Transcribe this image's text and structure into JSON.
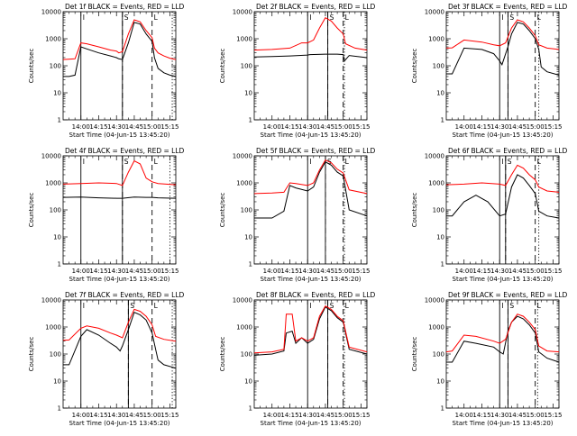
{
  "figure": {
    "start_time_label": "Start Time (04-Jun-15 13:45:20)",
    "ylabel": "Counts/sec",
    "x_ticks": [
      "14:00",
      "14:15",
      "14:30",
      "14:45",
      "15:00",
      "15:15"
    ],
    "y_ticks": [
      "1",
      "10",
      "100",
      "1000",
      "10000"
    ],
    "marker_labels": [
      "I",
      "S",
      "L"
    ],
    "series_colors": {
      "events": "#000000",
      "lld": "#ff0000"
    }
  },
  "chart_data": [
    {
      "type": "line",
      "title": "Det 1f BLACK = Events, RED = LLD",
      "xlabel": "Start Time (04-Jun-15 13:45:20)",
      "ylabel": "Counts/sec",
      "ylim": [
        1,
        10000
      ],
      "log_y": true,
      "xmin": "13:45",
      "xmax": "15:20",
      "markers": {
        "I": "14:00",
        "S": "14:35",
        "L": "15:00",
        "solid": [
          "14:00",
          "14:35"
        ],
        "dashed": [
          "14:35",
          "15:00"
        ],
        "dotted": [
          "15:17"
        ]
      },
      "series": [
        {
          "name": "BLACK = Events",
          "color": "#000000",
          "x": [
            "13:45",
            "13:50",
            "13:55",
            "14:00",
            "14:05",
            "14:15",
            "14:25",
            "14:30",
            "14:32",
            "14:35",
            "14:40",
            "14:45",
            "14:50",
            "14:55",
            "15:00",
            "15:02",
            "15:05",
            "15:10",
            "15:15",
            "15:20"
          ],
          "values": [
            40,
            40,
            45,
            500,
            420,
            300,
            230,
            200,
            180,
            170,
            700,
            4000,
            3500,
            1500,
            800,
            200,
            80,
            55,
            45,
            40
          ]
        },
        {
          "name": "RED = LLD",
          "color": "#ff0000",
          "x": [
            "13:45",
            "13:55",
            "14:00",
            "14:05",
            "14:15",
            "14:25",
            "14:30",
            "14:32",
            "14:35",
            "14:40",
            "14:45",
            "14:50",
            "14:55",
            "15:00",
            "15:02",
            "15:05",
            "15:10",
            "15:15",
            "15:20"
          ],
          "values": [
            170,
            180,
            700,
            650,
            500,
            380,
            350,
            300,
            330,
            1500,
            5000,
            4200,
            2000,
            1100,
            450,
            300,
            230,
            190,
            170
          ]
        }
      ]
    },
    {
      "type": "line",
      "title": "Det 2f BLACK = Events, RED = LLD",
      "xlabel": "Start Time (04-Jun-15 13:45:20)",
      "ylabel": "Counts/sec",
      "ylim": [
        1,
        10000
      ],
      "log_y": true,
      "xmin": "13:45",
      "xmax": "15:20",
      "markers": {
        "I": "14:30",
        "S": "14:47",
        "L": "15:00",
        "solid": [
          "14:30",
          "14:47"
        ],
        "dashed": [
          "14:47",
          "15:00"
        ],
        "dotted": [
          "15:01"
        ]
      },
      "series": [
        {
          "name": "BLACK = Events",
          "color": "#000000",
          "x": [
            "13:45",
            "14:00",
            "14:15",
            "14:30",
            "14:32",
            "14:45",
            "14:55",
            "15:00",
            "15:01",
            "15:05",
            "15:20"
          ],
          "values": [
            210,
            220,
            230,
            250,
            260,
            270,
            270,
            260,
            150,
            240,
            200
          ]
        },
        {
          "name": "RED = LLD",
          "color": "#ff0000",
          "x": [
            "13:45",
            "14:00",
            "14:15",
            "14:25",
            "14:30",
            "14:35",
            "14:40",
            "14:45",
            "14:50",
            "14:55",
            "15:00",
            "15:02",
            "15:10",
            "15:20"
          ],
          "values": [
            380,
            400,
            450,
            700,
            700,
            900,
            2500,
            6000,
            4500,
            2500,
            1500,
            650,
            450,
            380
          ]
        }
      ]
    },
    {
      "type": "line",
      "title": "Det 3f BLACK = Events, RED = LLD",
      "xlabel": "Start Time (04-Jun-15 13:45:20)",
      "ylabel": "Counts/sec",
      "ylim": [
        1,
        10000
      ],
      "log_y": true,
      "xmin": "13:45",
      "xmax": "15:20",
      "markers": {
        "I": "14:30",
        "S": "14:37",
        "L": "15:00",
        "solid": [
          "14:30",
          "14:37"
        ],
        "dashed": [
          "14:37",
          "15:00"
        ],
        "dotted": [
          "15:03"
        ]
      },
      "series": [
        {
          "name": "BLACK = Events",
          "color": "#000000",
          "x": [
            "13:45",
            "13:50",
            "14:00",
            "14:15",
            "14:25",
            "14:30",
            "14:32",
            "14:37",
            "14:40",
            "14:45",
            "14:50",
            "14:55",
            "15:00",
            "15:03",
            "15:05",
            "15:10",
            "15:20"
          ],
          "values": [
            50,
            50,
            450,
            400,
            280,
            150,
            110,
            500,
            1500,
            4000,
            3500,
            2000,
            1000,
            400,
            90,
            60,
            45
          ]
        },
        {
          "name": "RED = LLD",
          "color": "#ff0000",
          "x": [
            "13:45",
            "13:50",
            "14:00",
            "14:15",
            "14:25",
            "14:30",
            "14:35",
            "14:40",
            "14:45",
            "14:50",
            "14:55",
            "15:00",
            "15:03",
            "15:10",
            "15:20"
          ],
          "values": [
            450,
            460,
            900,
            750,
            600,
            550,
            700,
            2500,
            5000,
            4200,
            2500,
            1300,
            600,
            450,
            400
          ]
        }
      ]
    },
    {
      "type": "line",
      "title": "Det 4f BLACK = Events, RED = LLD",
      "xlabel": "Start Time (04-Jun-15 13:45:20)",
      "ylabel": "Counts/sec",
      "ylim": [
        1,
        10000
      ],
      "log_y": true,
      "xmin": "13:45",
      "xmax": "15:20",
      "markers": {
        "I": "14:00",
        "S": "14:35",
        "L": "15:00",
        "solid": [
          "14:00",
          "14:35"
        ],
        "dashed": [
          "14:35",
          "15:00"
        ],
        "dotted": [
          "15:15"
        ]
      },
      "series": [
        {
          "name": "BLACK = Events",
          "color": "#000000",
          "x": [
            "13:45",
            "14:00",
            "14:15",
            "14:30",
            "14:35",
            "14:45",
            "14:55",
            "15:00",
            "15:05",
            "15:20"
          ],
          "values": [
            290,
            300,
            280,
            270,
            270,
            300,
            290,
            290,
            280,
            270
          ]
        },
        {
          "name": "RED = LLD",
          "color": "#ff0000",
          "x": [
            "13:45",
            "14:00",
            "14:15",
            "14:30",
            "14:35",
            "14:40",
            "14:45",
            "14:50",
            "14:55",
            "15:00",
            "15:05",
            "15:20"
          ],
          "values": [
            900,
            950,
            1000,
            950,
            800,
            2500,
            6500,
            5000,
            1500,
            1100,
            950,
            850
          ]
        }
      ]
    },
    {
      "type": "line",
      "title": "Det 5f BLACK = Events, RED = LLD",
      "xlabel": "Start Time (04-Jun-15 13:45:20)",
      "ylabel": "Counts/sec",
      "ylim": [
        1,
        10000
      ],
      "log_y": true,
      "xmin": "13:45",
      "xmax": "15:20",
      "markers": {
        "I": "14:30",
        "S": "14:45",
        "L": "15:00",
        "solid": [
          "14:30",
          "14:45"
        ],
        "dashed": [
          "14:45",
          "15:00"
        ],
        "dotted": [
          "15:01"
        ]
      },
      "series": [
        {
          "name": "BLACK = Events",
          "color": "#000000",
          "x": [
            "13:45",
            "14:00",
            "14:10",
            "14:15",
            "14:20",
            "14:30",
            "14:35",
            "14:40",
            "14:45",
            "14:50",
            "14:55",
            "15:00",
            "15:05",
            "15:20"
          ],
          "values": [
            50,
            50,
            90,
            800,
            650,
            500,
            700,
            2500,
            6000,
            4500,
            2500,
            1800,
            100,
            60
          ]
        },
        {
          "name": "RED = LLD",
          "color": "#ff0000",
          "x": [
            "13:45",
            "14:00",
            "14:10",
            "14:15",
            "14:20",
            "14:30",
            "14:35",
            "14:40",
            "14:45",
            "14:50",
            "14:55",
            "15:00",
            "15:05",
            "15:20"
          ],
          "values": [
            400,
            420,
            450,
            1000,
            950,
            800,
            1000,
            3000,
            7000,
            5500,
            3200,
            2300,
            550,
            400
          ]
        }
      ]
    },
    {
      "type": "line",
      "title": "Det 6f BLACK = Events, RED = LLD",
      "xlabel": "Start Time (04-Jun-15 13:45:20)",
      "ylabel": "Counts/sec",
      "ylim": [
        1,
        10000
      ],
      "log_y": true,
      "xmin": "13:45",
      "xmax": "15:20",
      "markers": {
        "I": "14:30",
        "S": "14:35",
        "L": "15:00",
        "solid": [
          "14:30",
          "14:35"
        ],
        "dashed": [
          "14:35",
          "15:00"
        ],
        "dotted": [
          "15:03"
        ]
      },
      "series": [
        {
          "name": "BLACK = Events",
          "color": "#000000",
          "x": [
            "13:45",
            "13:50",
            "14:00",
            "14:10",
            "14:20",
            "14:30",
            "14:35",
            "14:40",
            "14:45",
            "14:50",
            "14:55",
            "15:00",
            "15:03",
            "15:10",
            "15:20"
          ],
          "values": [
            60,
            60,
            200,
            350,
            200,
            60,
            70,
            700,
            2000,
            1500,
            800,
            400,
            90,
            60,
            50
          ]
        },
        {
          "name": "RED = LLD",
          "color": "#ff0000",
          "x": [
            "13:45",
            "14:00",
            "14:15",
            "14:30",
            "14:35",
            "14:40",
            "14:45",
            "14:50",
            "14:55",
            "15:00",
            "15:03",
            "15:10",
            "15:20"
          ],
          "values": [
            850,
            900,
            1000,
            900,
            800,
            2000,
            4500,
            3500,
            2000,
            1300,
            700,
            500,
            450
          ]
        }
      ]
    },
    {
      "type": "line",
      "title": "Det 7f BLACK = Events, RED = LLD",
      "xlabel": "Start Time (04-Jun-15 13:45:20)",
      "ylabel": "Counts/sec",
      "ylim": [
        1,
        10000
      ],
      "log_y": true,
      "xmin": "13:45",
      "xmax": "15:20",
      "markers": {
        "I": "14:00",
        "S": "14:40",
        "L": "15:00",
        "solid": [
          "14:00",
          "14:40"
        ],
        "dashed": [
          "14:40",
          "15:00"
        ],
        "dotted": [
          "15:17"
        ]
      },
      "series": [
        {
          "name": "BLACK = Events",
          "color": "#000000",
          "x": [
            "13:45",
            "13:50",
            "14:00",
            "14:05",
            "14:15",
            "14:25",
            "14:30",
            "14:33",
            "14:35",
            "14:40",
            "14:45",
            "14:50",
            "14:55",
            "15:00",
            "15:03",
            "15:05",
            "15:10",
            "15:20"
          ],
          "values": [
            40,
            40,
            450,
            800,
            500,
            250,
            180,
            130,
            200,
            800,
            3500,
            2800,
            1800,
            600,
            150,
            60,
            40,
            30
          ]
        },
        {
          "name": "RED = LLD",
          "color": "#ff0000",
          "x": [
            "13:45",
            "13:50",
            "14:00",
            "14:05",
            "14:15",
            "14:25",
            "14:30",
            "14:35",
            "14:40",
            "14:45",
            "14:50",
            "14:55",
            "15:00",
            "15:03",
            "15:10",
            "15:20"
          ],
          "values": [
            320,
            330,
            900,
            1100,
            900,
            600,
            500,
            400,
            1500,
            4500,
            3800,
            2500,
            1200,
            450,
            350,
            300
          ]
        }
      ]
    },
    {
      "type": "line",
      "title": "Det 8f BLACK = Events, RED = LLD",
      "xlabel": "Start Time (04-Jun-15 13:45:20)",
      "ylabel": "Counts/sec",
      "ylim": [
        1,
        10000
      ],
      "log_y": true,
      "xmin": "13:45",
      "xmax": "15:20",
      "markers": {
        "I": "14:30",
        "S": "14:47",
        "L": "15:00",
        "solid": [
          "14:30",
          "14:47"
        ],
        "dashed": [
          "14:47",
          "15:00"
        ],
        "dotted": [
          "15:01"
        ]
      },
      "series": [
        {
          "name": "BLACK = Events",
          "color": "#000000",
          "x": [
            "13:45",
            "14:00",
            "14:10",
            "14:12",
            "14:17",
            "14:20",
            "14:25",
            "14:30",
            "14:35",
            "14:40",
            "14:45",
            "14:50",
            "14:55",
            "15:00",
            "15:05",
            "15:20"
          ],
          "values": [
            90,
            100,
            130,
            600,
            700,
            250,
            400,
            250,
            350,
            2000,
            5500,
            4000,
            2200,
            1500,
            150,
            100
          ]
        },
        {
          "name": "RED = LLD",
          "color": "#ff0000",
          "x": [
            "13:45",
            "14:00",
            "14:10",
            "14:12",
            "14:17",
            "14:20",
            "14:25",
            "14:30",
            "14:35",
            "14:40",
            "14:45",
            "14:50",
            "14:55",
            "15:00",
            "15:05",
            "15:20"
          ],
          "values": [
            110,
            120,
            150,
            3000,
            3000,
            300,
            400,
            300,
            400,
            2500,
            6000,
            4500,
            2500,
            1700,
            180,
            120
          ]
        }
      ]
    },
    {
      "type": "line",
      "title": "Det 9f BLACK = Events, RED = LLD",
      "xlabel": "Start Time (04-Jun-15 13:45:20)",
      "ylabel": "Counts/sec",
      "ylim": [
        1,
        10000
      ],
      "log_y": true,
      "xmin": "13:45",
      "xmax": "15:20",
      "markers": {
        "I": "14:30",
        "S": "14:37",
        "L": "15:00",
        "solid": [
          "14:30",
          "14:37"
        ],
        "dashed": [
          "14:37",
          "15:00"
        ],
        "dotted": [
          "15:02"
        ]
      },
      "series": [
        {
          "name": "BLACK = Events",
          "color": "#000000",
          "x": [
            "13:45",
            "13:50",
            "14:00",
            "14:10",
            "14:25",
            "14:30",
            "14:33",
            "14:37",
            "14:40",
            "14:45",
            "14:50",
            "14:55",
            "15:00",
            "15:03",
            "15:10",
            "15:20"
          ],
          "values": [
            50,
            50,
            300,
            250,
            180,
            120,
            100,
            700,
            1500,
            2500,
            2000,
            1200,
            600,
            120,
            70,
            50
          ]
        },
        {
          "name": "RED = LLD",
          "color": "#ff0000",
          "x": [
            "13:45",
            "13:50",
            "14:00",
            "14:10",
            "14:25",
            "14:30",
            "14:35",
            "14:40",
            "14:45",
            "14:50",
            "14:55",
            "15:00",
            "15:03",
            "15:10",
            "15:20"
          ],
          "values": [
            120,
            130,
            500,
            450,
            300,
            250,
            350,
            1500,
            3000,
            2500,
            1500,
            800,
            200,
            130,
            120
          ]
        }
      ]
    }
  ]
}
